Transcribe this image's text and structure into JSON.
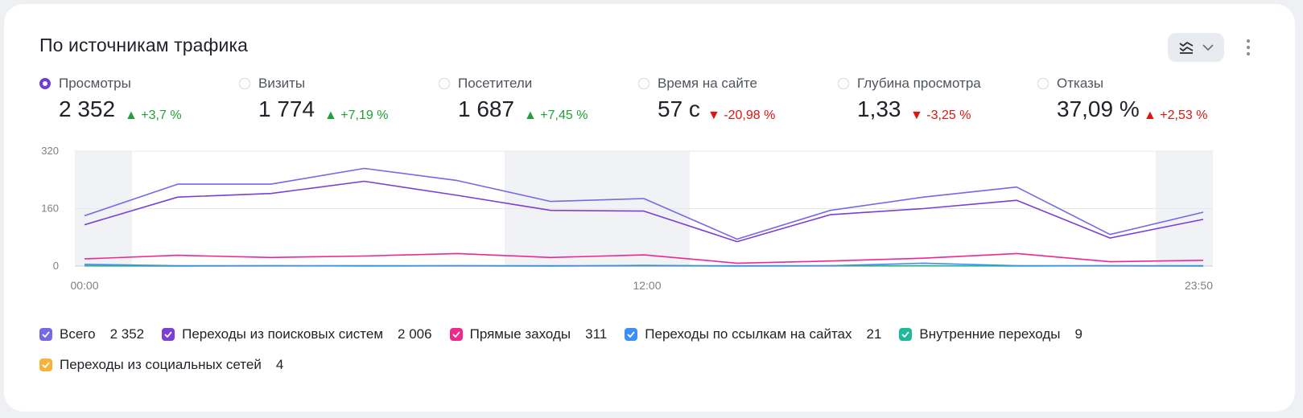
{
  "header": {
    "title": "По источникам трафика"
  },
  "metrics": [
    {
      "label": "Просмотры",
      "value": "2 352",
      "delta": "▲ +3,7 %",
      "trend": "up",
      "selected": true
    },
    {
      "label": "Визиты",
      "value": "1 774",
      "delta": "▲ +7,19 %",
      "trend": "up",
      "selected": false
    },
    {
      "label": "Посетители",
      "value": "1 687",
      "delta": "▲ +7,45 %",
      "trend": "up",
      "selected": false
    },
    {
      "label": "Время на сайте",
      "value": "57 с",
      "delta": "▼ -20,98 %",
      "trend": "down",
      "selected": false
    },
    {
      "label": "Глубина просмотра",
      "value": "1,33",
      "delta": "▼ -3,25 %",
      "trend": "down",
      "selected": false
    },
    {
      "label": "Отказы",
      "value": "37,09 %",
      "delta": "▲ +2,53 %",
      "trend": "bad-up",
      "selected": false
    }
  ],
  "icons": {
    "view": "line-chart-icon",
    "dropdown": "chevron-down-icon",
    "menu": "kebab-menu-icon",
    "check": "checkmark-icon"
  },
  "chart_data": {
    "type": "line",
    "x_tick_labels": [
      "00:00",
      "12:00",
      "23:50"
    ],
    "y_tick_labels": [
      "0",
      "160",
      "320"
    ],
    "ylim": [
      0,
      320
    ],
    "grid": true,
    "series": [
      {
        "name": "Всего",
        "total": "2 352",
        "color": "#7668e6",
        "values": [
          140,
          228,
          228,
          272,
          238,
          180,
          188,
          75,
          155,
          192,
          220,
          88,
          150
        ]
      },
      {
        "name": "Переходы из поисковых систем",
        "total": "2 006",
        "color": "#7b3fd6",
        "values": [
          115,
          192,
          202,
          236,
          197,
          155,
          153,
          68,
          143,
          160,
          183,
          78,
          130
        ]
      },
      {
        "name": "Прямые заходы",
        "total": "311",
        "color": "#f0288c",
        "values": [
          20,
          30,
          24,
          28,
          35,
          24,
          31,
          8,
          14,
          22,
          35,
          12,
          16
        ]
      },
      {
        "name": "Переходы по ссылкам на сайтах",
        "total": "21",
        "color": "#3e8ef7",
        "values": [
          5,
          1,
          1,
          1,
          1,
          1,
          1,
          1,
          1,
          8,
          1,
          1,
          1
        ]
      },
      {
        "name": "Внутренние переходы",
        "total": "9",
        "color": "#1fb89a",
        "values": [
          1,
          0,
          1,
          0,
          1,
          0,
          2,
          0,
          1,
          1,
          0,
          1,
          0
        ]
      },
      {
        "name": "Переходы из социальных сетей",
        "total": "4",
        "color": "#f7b23e",
        "values": [
          0,
          0,
          0,
          1,
          0,
          0,
          0,
          0,
          0,
          0,
          1,
          0,
          0
        ]
      }
    ]
  }
}
